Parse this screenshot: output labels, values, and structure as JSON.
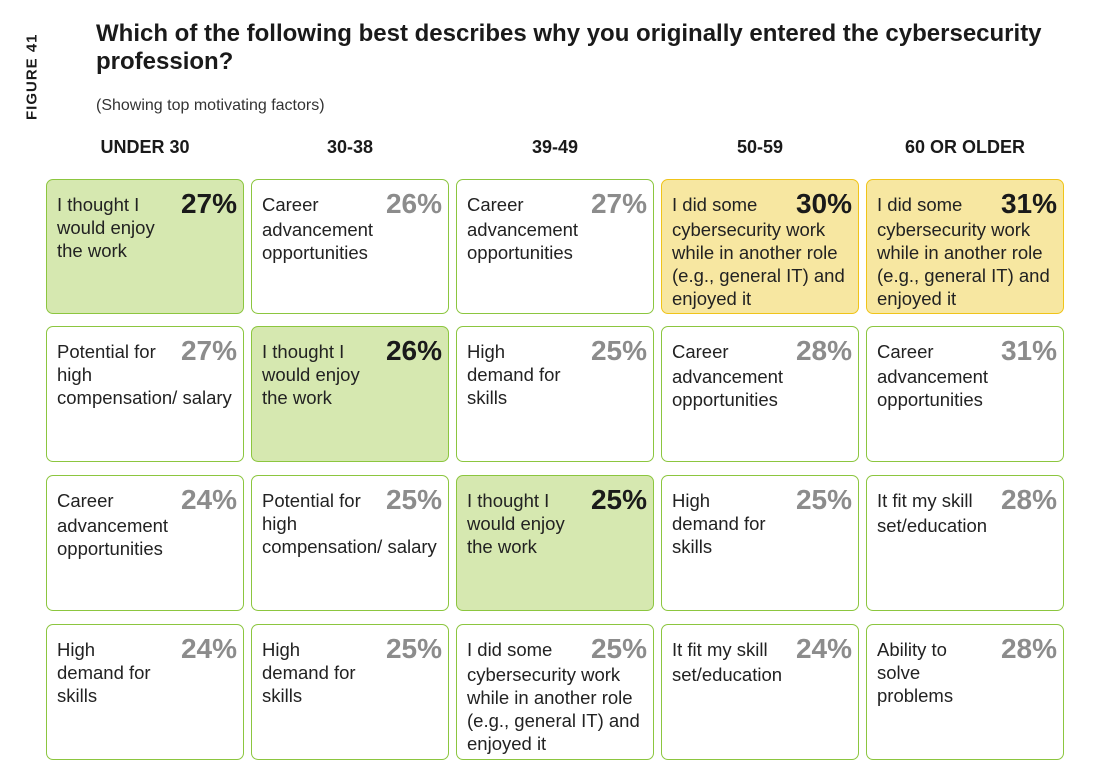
{
  "figure_label": "FIGURE 41",
  "title": "Which of the following best describes why you originally entered the cybersecurity profession?",
  "subtitle": "(Showing top motivating factors)",
  "colors": {
    "highlight_green": "#d6e8b0",
    "highlight_yellow": "#f7e7a1",
    "border_green": "#8cc63f",
    "border_yellow": "#f0c419"
  },
  "chart_data": {
    "type": "table",
    "title": "Which of the following best describes why you originally entered the cybersecurity profession?",
    "subtitle": "(Showing top motivating factors)",
    "columns": [
      {
        "name": "UNDER 30",
        "items": [
          {
            "label": "I thought I would enjoy the work",
            "value": 27,
            "pct": "27%",
            "highlight": "green"
          },
          {
            "label": "Potential for high compensation/ salary",
            "value": 27,
            "pct": "27%",
            "highlight": "none"
          },
          {
            "label": "Career advancement opportunities",
            "value": 24,
            "pct": "24%",
            "highlight": "none"
          },
          {
            "label": "High demand for skills",
            "value": 24,
            "pct": "24%",
            "highlight": "none"
          }
        ]
      },
      {
        "name": "30-38",
        "items": [
          {
            "label": "Career advancement opportunities",
            "value": 26,
            "pct": "26%",
            "highlight": "none"
          },
          {
            "label": "I thought I would enjoy the work",
            "value": 26,
            "pct": "26%",
            "highlight": "green"
          },
          {
            "label": "Potential for high compensation/ salary",
            "value": 25,
            "pct": "25%",
            "highlight": "none"
          },
          {
            "label": "High demand for skills",
            "value": 25,
            "pct": "25%",
            "highlight": "none"
          }
        ]
      },
      {
        "name": "39-49",
        "items": [
          {
            "label": "Career advancement opportunities",
            "value": 27,
            "pct": "27%",
            "highlight": "none"
          },
          {
            "label": "High demand for skills",
            "value": 25,
            "pct": "25%",
            "highlight": "none"
          },
          {
            "label": "I thought I would enjoy the work",
            "value": 25,
            "pct": "25%",
            "highlight": "green"
          },
          {
            "label": "I did some cybersecurity work while in another role (e.g., general IT) and enjoyed it",
            "value": 25,
            "pct": "25%",
            "highlight": "none"
          }
        ]
      },
      {
        "name": "50-59",
        "items": [
          {
            "label": "I did some cybersecurity work while in another role (e.g., general IT) and enjoyed it",
            "value": 30,
            "pct": "30%",
            "highlight": "yellow"
          },
          {
            "label": "Career advancement opportunities",
            "value": 28,
            "pct": "28%",
            "highlight": "none"
          },
          {
            "label": "High demand for skills",
            "value": 25,
            "pct": "25%",
            "highlight": "none"
          },
          {
            "label": "It fit my skill set/education",
            "value": 24,
            "pct": "24%",
            "highlight": "none"
          }
        ]
      },
      {
        "name": "60 OR OLDER",
        "items": [
          {
            "label": "I did some cybersecurity work while in another role (e.g., general IT) and enjoyed it",
            "value": 31,
            "pct": "31%",
            "highlight": "yellow"
          },
          {
            "label": "Career advancement opportunities",
            "value": 31,
            "pct": "31%",
            "highlight": "none"
          },
          {
            "label": "It fit my skill set/education",
            "value": 28,
            "pct": "28%",
            "highlight": "none"
          },
          {
            "label": "Ability to solve problems",
            "value": 28,
            "pct": "28%",
            "highlight": "none"
          }
        ]
      }
    ]
  }
}
